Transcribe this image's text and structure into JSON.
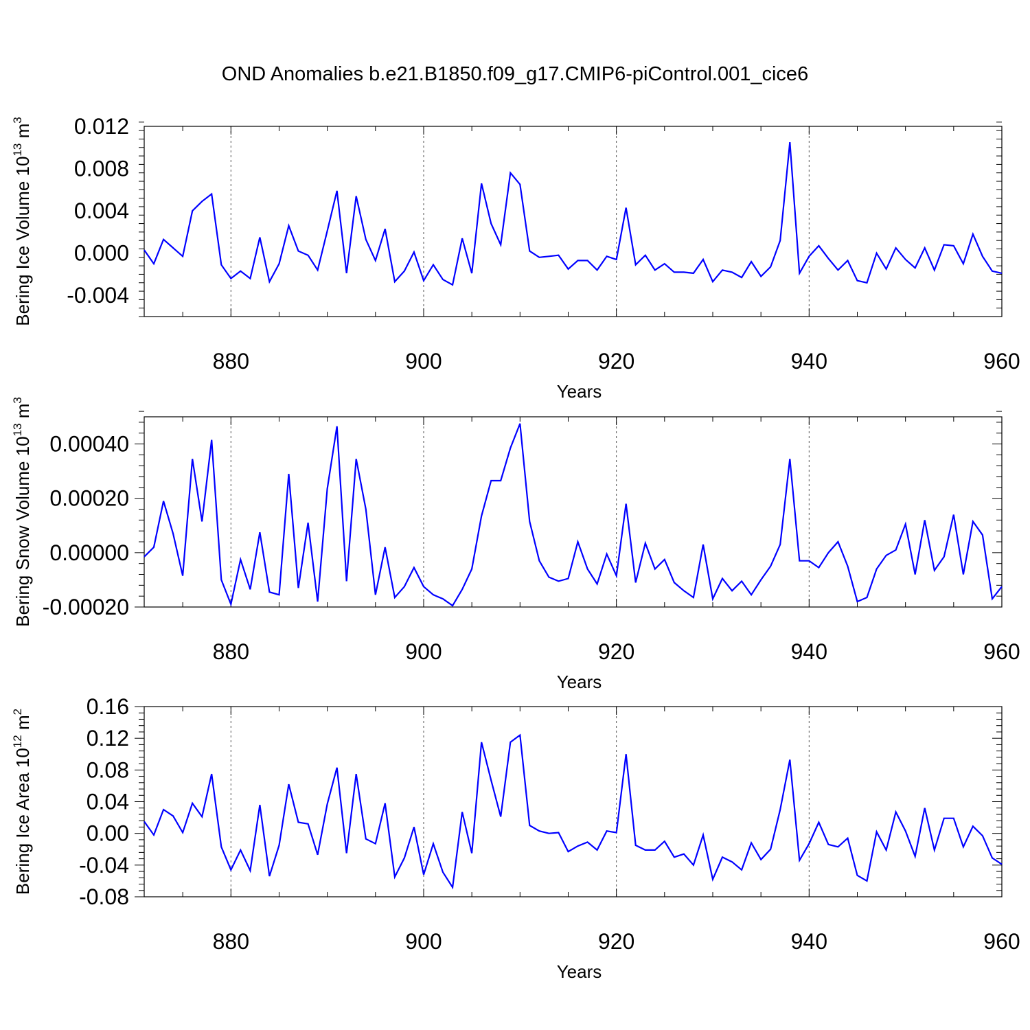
{
  "title": "OND Anomalies b.e21.B1850.f09_g17.CMIP6-piControl.001_cice6",
  "colors": {
    "line": "#0000ff",
    "axis": "#000000",
    "grid": "#555555",
    "background": "#ffffff"
  },
  "chart_data": [
    {
      "type": "line",
      "xlabel": "Years",
      "ylabel": {
        "text": "Bering Ice Volume 10",
        "sup": "13",
        "unit": " m",
        "unit_sup": "3"
      },
      "xlim": [
        871,
        960
      ],
      "ylim": [
        -0.006,
        0.012
      ],
      "xticks": [
        880,
        900,
        920,
        940,
        960
      ],
      "xtick_labels": [
        "880",
        "900",
        "920",
        "940",
        "960"
      ],
      "yticks": [
        -0.004,
        0.0,
        0.004,
        0.008,
        0.012
      ],
      "ytick_labels": [
        "-0.004",
        "0.000",
        "0.004",
        "0.008",
        "0.012"
      ],
      "grid": "vertical dashed at major x ticks",
      "series": [
        {
          "x": [
            871,
            872,
            873,
            874,
            875,
            876,
            877,
            878,
            879,
            880,
            881,
            882,
            883,
            884,
            885,
            886,
            887,
            888,
            889,
            890,
            891,
            892,
            893,
            894,
            895,
            896,
            897,
            898,
            899,
            900,
            901,
            902,
            903,
            904,
            905,
            906,
            907,
            908,
            909,
            910,
            911,
            912,
            913,
            914,
            915,
            916,
            917,
            918,
            919,
            920,
            921,
            922,
            923,
            924,
            925,
            926,
            927,
            928,
            929,
            930,
            931,
            932,
            933,
            934,
            935,
            936,
            937,
            938,
            939,
            940,
            941,
            942,
            943,
            944,
            945,
            946,
            947,
            948,
            949,
            950,
            951,
            952,
            953,
            954,
            955,
            956,
            957,
            958,
            959,
            960
          ],
          "values": [
            0.0003,
            -0.001,
            0.0013,
            0.0005,
            -0.0003,
            0.004,
            0.0049,
            0.0056,
            -0.0011,
            -0.0024,
            -0.0017,
            -0.0024,
            0.0015,
            -0.0027,
            -0.001,
            0.0026,
            0.0002,
            -0.0002,
            -0.0016,
            0.0021,
            0.0059,
            -0.0019,
            0.0054,
            0.0013,
            -0.0007,
            0.0023,
            -0.0027,
            -0.0017,
            0.0001,
            -0.0026,
            -0.0011,
            -0.0025,
            -0.003,
            0.0014,
            -0.0019,
            0.0066,
            0.0028,
            0.0008,
            0.0076,
            0.0065,
            0.0002,
            -0.0004,
            -0.0003,
            -0.0002,
            -0.0015,
            -0.0007,
            -0.0007,
            -0.0016,
            -0.0003,
            -0.0006,
            0.0043,
            -0.0011,
            -0.0002,
            -0.0016,
            -0.001,
            -0.0018,
            -0.0018,
            -0.0019,
            -0.0006,
            -0.0027,
            -0.0016,
            -0.0018,
            -0.0023,
            -0.0008,
            -0.0022,
            -0.0013,
            0.0012,
            0.0105,
            -0.0019,
            -0.0003,
            0.0007,
            -0.0005,
            -0.0016,
            -0.0007,
            -0.0026,
            -0.0028,
            0.0,
            -0.0015,
            0.0005,
            -0.0006,
            -0.0014,
            0.0005,
            -0.0016,
            0.0008,
            0.0007,
            -0.001,
            0.0018,
            -0.0003,
            -0.0017,
            -0.0019
          ]
        }
      ]
    },
    {
      "type": "line",
      "xlabel": "Years",
      "ylabel": {
        "text": "Bering Snow Volume 10",
        "sup": "13",
        "unit": " m",
        "unit_sup": "3"
      },
      "xlim": [
        871,
        960
      ],
      "ylim": [
        -0.0002,
        0.0005
      ],
      "xticks": [
        880,
        900,
        920,
        940,
        960
      ],
      "xtick_labels": [
        "880",
        "900",
        "920",
        "940",
        "960"
      ],
      "yticks": [
        -0.0002,
        0.0,
        0.0002,
        0.0004
      ],
      "ytick_labels": [
        "-0.00020",
        "0.00000",
        "0.00020",
        "0.00040"
      ],
      "grid": "vertical dashed at major x ticks",
      "series": [
        {
          "x": [
            871,
            872,
            873,
            874,
            875,
            876,
            877,
            878,
            879,
            880,
            881,
            882,
            883,
            884,
            885,
            886,
            887,
            888,
            889,
            890,
            891,
            892,
            893,
            894,
            895,
            896,
            897,
            898,
            899,
            900,
            901,
            902,
            903,
            904,
            905,
            906,
            907,
            908,
            909,
            910,
            911,
            912,
            913,
            914,
            915,
            916,
            917,
            918,
            919,
            920,
            921,
            922,
            923,
            924,
            925,
            926,
            927,
            928,
            929,
            930,
            931,
            932,
            933,
            934,
            935,
            936,
            937,
            938,
            939,
            940,
            941,
            942,
            943,
            944,
            945,
            946,
            947,
            948,
            949,
            950,
            951,
            952,
            953,
            954,
            955,
            956,
            957,
            958,
            959,
            960
          ],
          "values": [
            -1.5e-05,
            2e-05,
            0.00019,
            7e-05,
            -8.5e-05,
            0.000345,
            0.000115,
            0.000415,
            -0.0001,
            -0.00019,
            -2.5e-05,
            -0.000135,
            7.5e-05,
            -0.000145,
            -0.000155,
            0.00029,
            -0.00013,
            0.00011,
            -0.00018,
            0.000235,
            0.000465,
            -0.000105,
            0.000345,
            0.00016,
            -0.000155,
            2e-05,
            -0.000165,
            -0.000125,
            -5.5e-05,
            -0.000125,
            -0.000155,
            -0.00017,
            -0.000195,
            -0.000135,
            -6e-05,
            0.000135,
            0.000265,
            0.000265,
            0.000385,
            0.000475,
            0.000115,
            -3e-05,
            -9e-05,
            -0.000105,
            -9.5e-05,
            4e-05,
            -6e-05,
            -0.000115,
            -5e-06,
            -8.5e-05,
            0.00018,
            -0.00011,
            3.5e-05,
            -6e-05,
            -2.5e-05,
            -0.00011,
            -0.00014,
            -0.000165,
            3e-05,
            -0.00017,
            -9.5e-05,
            -0.00014,
            -0.000105,
            -0.000155,
            -0.0001,
            -5e-05,
            3e-05,
            0.000345,
            -3e-05,
            -3e-05,
            -5.5e-05,
            0.0,
            4e-05,
            -5e-05,
            -0.00018,
            -0.000165,
            -6e-05,
            -1e-05,
            1e-05,
            0.000105,
            -8e-05,
            0.00012,
            -6.5e-05,
            -1.5e-05,
            0.00014,
            -8e-05,
            0.000115,
            6.5e-05,
            -0.00017,
            -0.000125
          ]
        }
      ]
    },
    {
      "type": "line",
      "xlabel": "Years",
      "ylabel": {
        "text": "Bering Ice Area 10",
        "sup": "12",
        "unit": " m",
        "unit_sup": "2"
      },
      "xlim": [
        871,
        960
      ],
      "ylim": [
        -0.08,
        0.16
      ],
      "xticks": [
        880,
        900,
        920,
        940,
        960
      ],
      "xtick_labels": [
        "880",
        "900",
        "920",
        "940",
        "960"
      ],
      "yticks": [
        -0.08,
        -0.04,
        0.0,
        0.04,
        0.08,
        0.12,
        0.16
      ],
      "ytick_labels": [
        "-0.08",
        "-0.04",
        "0.00",
        "0.04",
        "0.08",
        "0.12",
        "0.16"
      ],
      "grid": "vertical dashed at major x ticks",
      "series": [
        {
          "x": [
            871,
            872,
            873,
            874,
            875,
            876,
            877,
            878,
            879,
            880,
            881,
            882,
            883,
            884,
            885,
            886,
            887,
            888,
            889,
            890,
            891,
            892,
            893,
            894,
            895,
            896,
            897,
            898,
            899,
            900,
            901,
            902,
            903,
            904,
            905,
            906,
            907,
            908,
            909,
            910,
            911,
            912,
            913,
            914,
            915,
            916,
            917,
            918,
            919,
            920,
            921,
            922,
            923,
            924,
            925,
            926,
            927,
            928,
            929,
            930,
            931,
            932,
            933,
            934,
            935,
            936,
            937,
            938,
            939,
            940,
            941,
            942,
            943,
            944,
            945,
            946,
            947,
            948,
            949,
            950,
            951,
            952,
            953,
            954,
            955,
            956,
            957,
            958,
            959,
            960
          ],
          "values": [
            0.015,
            -0.002,
            0.03,
            0.022,
            0.001,
            0.038,
            0.021,
            0.075,
            -0.017,
            -0.046,
            -0.021,
            -0.047,
            0.036,
            -0.054,
            -0.015,
            0.062,
            0.014,
            0.012,
            -0.027,
            0.037,
            0.083,
            -0.025,
            0.075,
            -0.007,
            -0.013,
            0.038,
            -0.055,
            -0.031,
            0.008,
            -0.052,
            -0.013,
            -0.049,
            -0.068,
            0.027,
            -0.025,
            0.115,
            0.067,
            0.021,
            0.115,
            0.124,
            0.01,
            0.003,
            0.0,
            0.001,
            -0.023,
            -0.016,
            -0.011,
            -0.021,
            0.003,
            0.001,
            0.1,
            -0.015,
            -0.021,
            -0.021,
            -0.01,
            -0.03,
            -0.026,
            -0.04,
            -0.002,
            -0.058,
            -0.03,
            -0.036,
            -0.046,
            -0.012,
            -0.033,
            -0.02,
            0.03,
            0.093,
            -0.034,
            -0.013,
            0.014,
            -0.014,
            -0.017,
            -0.006,
            -0.053,
            -0.06,
            0.002,
            -0.021,
            0.027,
            0.003,
            -0.029,
            0.032,
            -0.021,
            0.019,
            0.019,
            -0.017,
            0.009,
            -0.003,
            -0.031,
            -0.039
          ]
        }
      ]
    }
  ]
}
